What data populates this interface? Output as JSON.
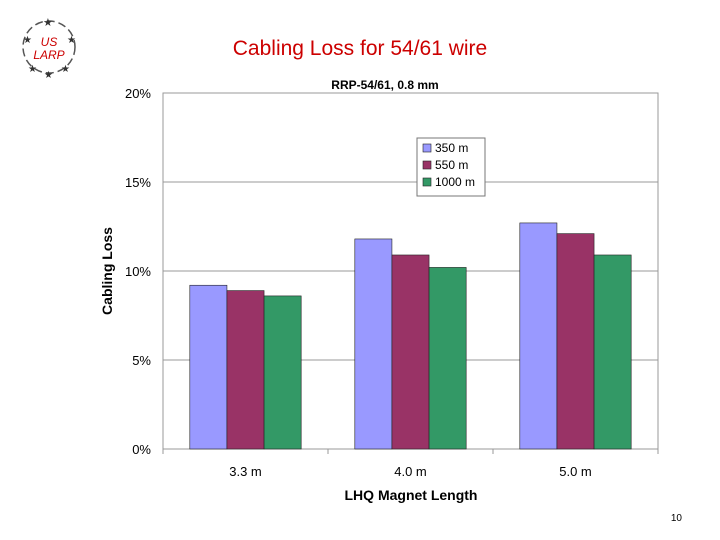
{
  "slide": {
    "title": "Cabling Loss for 54/61 wire",
    "page_number": "10",
    "logo_top_text": "US",
    "logo_bottom_text": "LARP"
  },
  "colors": {
    "title": "#cc0000",
    "series": [
      "#9999ff",
      "#993366",
      "#339966"
    ],
    "logo": "#cc0000"
  },
  "chart_data": {
    "type": "bar",
    "title": "RRP-54/61, 0.8 mm",
    "xlabel": "LHQ Magnet Length",
    "ylabel": "Cabling Loss",
    "categories": [
      "3.3 m",
      "4.0 m",
      "5.0 m"
    ],
    "series": [
      {
        "name": "350 m",
        "values": [
          9.2,
          11.8,
          12.7
        ]
      },
      {
        "name": "550 m",
        "values": [
          8.9,
          10.9,
          12.1
        ]
      },
      {
        "name": "1000 m",
        "values": [
          8.6,
          10.2,
          10.9
        ]
      }
    ],
    "ylim": [
      0,
      20
    ],
    "yticks": [
      0,
      5,
      10,
      15,
      20
    ],
    "ytick_labels": [
      "0%",
      "5%",
      "10%",
      "15%",
      "20%"
    ],
    "grid": true,
    "legend_position": "top-right inside plot"
  }
}
